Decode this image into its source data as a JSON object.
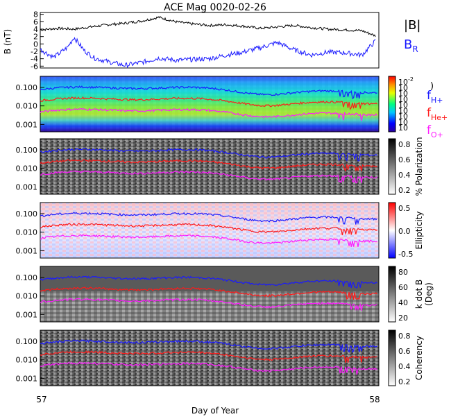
{
  "chart_data": {
    "type": "line",
    "title": "ACE Mag 0020-02-26",
    "xlabel": "Day of Year",
    "xlim": [
      57,
      58
    ],
    "xticks": [
      "57",
      "58"
    ],
    "panels": [
      {
        "name": "mag",
        "ylabel": "B\n(nT)",
        "ylim": [
          -6.5,
          8.5
        ],
        "yticks": [
          "-6",
          "-4",
          "-2",
          "0",
          "2",
          "4",
          "6",
          "8"
        ],
        "series": [
          {
            "name": "|B|",
            "color": "#000000",
            "x": [
              57.0,
              57.05,
              57.1,
              57.15,
              57.2,
              57.25,
              57.3,
              57.35,
              57.4,
              57.45,
              57.5,
              57.55,
              57.6,
              57.65,
              57.7,
              57.75,
              57.8,
              57.85,
              57.9,
              57.95,
              57.99
            ],
            "values": [
              3.8,
              4.2,
              4.0,
              4.6,
              5.2,
              5.6,
              6.2,
              7.2,
              6.0,
              5.4,
              5.0,
              5.2,
              4.8,
              4.2,
              4.6,
              5.0,
              4.4,
              4.0,
              3.8,
              3.6,
              2.2
            ]
          },
          {
            "name": "B_R",
            "color": "#1a1aff",
            "x": [
              57.0,
              57.04,
              57.08,
              57.1,
              57.13,
              57.16,
              57.2,
              57.25,
              57.3,
              57.35,
              57.4,
              57.45,
              57.5,
              57.55,
              57.6,
              57.65,
              57.7,
              57.75,
              57.8,
              57.85,
              57.9,
              57.95,
              57.99
            ],
            "values": [
              -1.5,
              -3.6,
              -1.0,
              1.8,
              -1.8,
              -3.8,
              -4.8,
              -5.8,
              -5.0,
              -3.8,
              -4.4,
              -4.2,
              -4.0,
              -3.0,
              -2.2,
              -1.0,
              0.4,
              -1.6,
              -3.0,
              -2.2,
              -2.4,
              -3.0,
              0.8
            ]
          }
        ],
        "legend": [
          "|B|",
          "B_R"
        ]
      },
      {
        "name": "power",
        "colorbar": {
          "ticks": [
            "10^-2",
            "10",
            "10",
            "10",
            "10",
            "10",
            "10",
            "10",
            "10"
          ],
          "colormap": "rainbow"
        }
      },
      {
        "name": "polarization",
        "colorbar": {
          "label": "% Polarization",
          "ticks": [
            "0.8",
            "0.6",
            "0.4",
            "0.2"
          ],
          "colormap": "gray"
        }
      },
      {
        "name": "ellipticity",
        "colorbar": {
          "label": "Ellipticity",
          "ticks": [
            "0.5",
            "0.0",
            "-0.5"
          ],
          "colormap": "bwr"
        }
      },
      {
        "name": "kdotb",
        "colorbar": {
          "label": "k dot B\n(Deg)",
          "ticks": [
            "80",
            "60",
            "40",
            "20"
          ],
          "colormap": "gray"
        }
      },
      {
        "name": "coherency",
        "colorbar": {
          "label": "Coherency",
          "ticks": [
            "0.8",
            "0.6",
            "0.4",
            "0.2"
          ],
          "colormap": "gray"
        }
      }
    ],
    "freq_yticks": [
      "0.100",
      "0.010",
      "0.001"
    ],
    "freq_ylim_log10": [
      -3.4,
      -0.4
    ],
    "freq_lines": [
      {
        "name": "f_H+",
        "color": "#1a1aff",
        "mean": 0.075
      },
      {
        "name": "f_He+",
        "color": "#ff1a1a",
        "mean": 0.019
      },
      {
        "name": "f_O+",
        "color": "#ff1aff",
        "mean": 0.0047
      }
    ],
    "legend_freq": [
      "f_H+",
      "f_He+",
      "f_O+"
    ]
  }
}
